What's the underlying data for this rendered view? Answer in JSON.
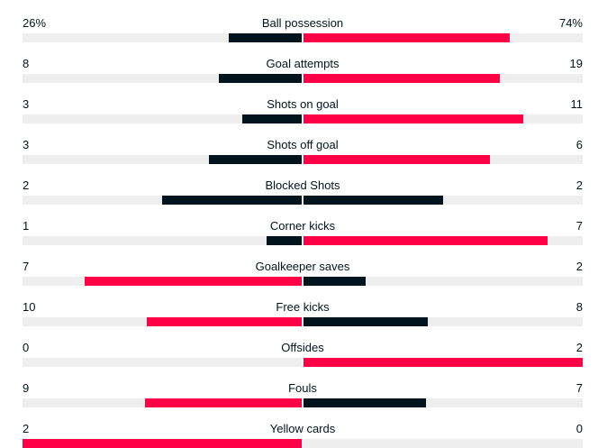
{
  "colors": {
    "leader": "#ff0046",
    "trailer": "#00141e",
    "track": "#eeeeee"
  },
  "stats": [
    {
      "category": "Ball possession",
      "home": "26%",
      "away": "74%",
      "home_value": 26,
      "away_value": 74
    },
    {
      "category": "Goal attempts",
      "home": "8",
      "away": "19",
      "home_value": 8,
      "away_value": 19
    },
    {
      "category": "Shots on goal",
      "home": "3",
      "away": "11",
      "home_value": 3,
      "away_value": 11
    },
    {
      "category": "Shots off goal",
      "home": "3",
      "away": "6",
      "home_value": 3,
      "away_value": 6
    },
    {
      "category": "Blocked Shots",
      "home": "2",
      "away": "2",
      "home_value": 2,
      "away_value": 2
    },
    {
      "category": "Corner kicks",
      "home": "1",
      "away": "7",
      "home_value": 1,
      "away_value": 7
    },
    {
      "category": "Goalkeeper saves",
      "home": "7",
      "away": "2",
      "home_value": 7,
      "away_value": 2
    },
    {
      "category": "Free kicks",
      "home": "10",
      "away": "8",
      "home_value": 10,
      "away_value": 8
    },
    {
      "category": "Offsides",
      "home": "0",
      "away": "2",
      "home_value": 0,
      "away_value": 2
    },
    {
      "category": "Fouls",
      "home": "9",
      "away": "7",
      "home_value": 9,
      "away_value": 7
    },
    {
      "category": "Yellow cards",
      "home": "2",
      "away": "0",
      "home_value": 2,
      "away_value": 0
    }
  ]
}
